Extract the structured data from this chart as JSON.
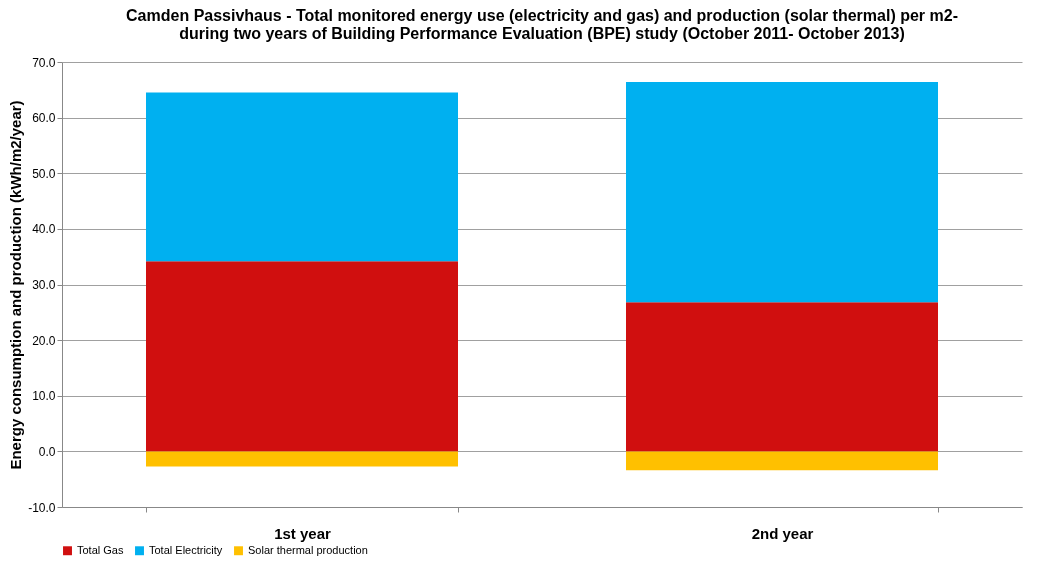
{
  "chart_data": {
    "type": "bar",
    "title": "Camden Passivhaus - Total monitored energy use (electricity and gas) and production (solar thermal) per m2-\nduring two years  of Building Performance Evaluation (BPE) study (October 2011- October 2013)",
    "ylabel": "Energy consumption   and production  (kWh/m2/year)",
    "categories": [
      "1st year",
      "2nd year"
    ],
    "stacked": true,
    "series": [
      {
        "name": "Total Gas",
        "color": "#d00f0f",
        "values": [
          34.2,
          26.8
        ]
      },
      {
        "name": "Total Electricity",
        "color": "#00b0f0",
        "values": [
          30.3,
          39.6
        ]
      },
      {
        "name": "Solar thermal production",
        "color": "#ffc000",
        "values": [
          -2.7,
          -3.4
        ]
      }
    ],
    "ylim": [
      -10,
      70
    ],
    "yticks": [
      {
        "value": -10,
        "label": "-10.0"
      },
      {
        "value": 0,
        "label": "0.0"
      },
      {
        "value": 10,
        "label": "10.0"
      },
      {
        "value": 20,
        "label": "20.0"
      },
      {
        "value": 30,
        "label": "30.0"
      },
      {
        "value": 40,
        "label": "40.0"
      },
      {
        "value": 50,
        "label": "50.0"
      },
      {
        "value": 60,
        "label": "60.0"
      },
      {
        "value": 70,
        "label": "70.0"
      }
    ],
    "grid": "y",
    "legend": "bottom"
  }
}
